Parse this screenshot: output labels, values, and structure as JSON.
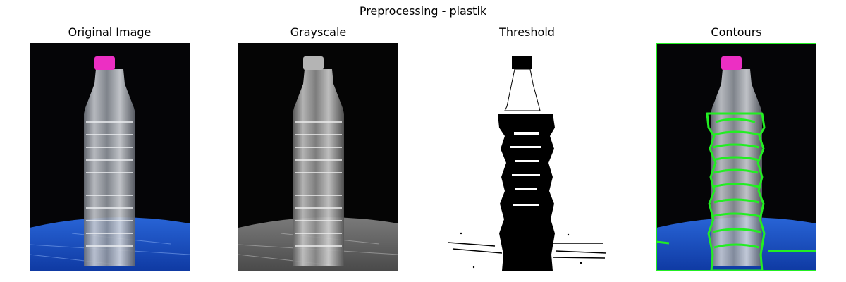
{
  "figure": {
    "title": "Preprocessing - plastik"
  },
  "panels": [
    {
      "title": "Original Image"
    },
    {
      "title": "Grayscale"
    },
    {
      "title": "Threshold"
    },
    {
      "title": "Contours"
    }
  ],
  "colors": {
    "cap_original": "#ec2fc3",
    "background_dark": "#050507",
    "table_blue": "#1f57c9",
    "contour_green": "#22ee22",
    "gray_cap": "#b4b4b4",
    "threshold_black": "#000000"
  }
}
